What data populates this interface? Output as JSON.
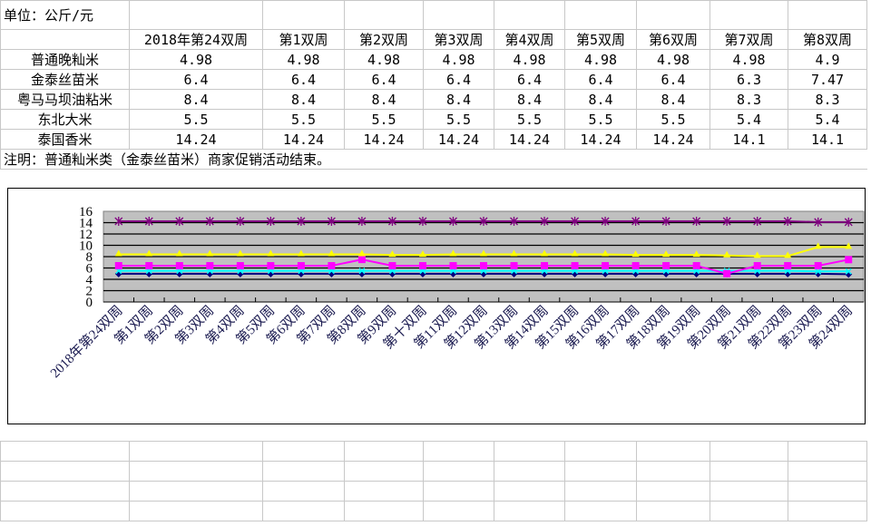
{
  "table": {
    "unit_label": "单位：公斤/元",
    "columns": [
      "2018年第24双周",
      "第1双周",
      "第2双周",
      "第3双周",
      "第4双周",
      "第5双周",
      "第6双周",
      "第7双周",
      "第8双周"
    ],
    "rows": [
      {
        "name": "普通晚籼米",
        "values": [
          "4.98",
          "4.98",
          "4.98",
          "4.98",
          "4.98",
          "4.98",
          "4.98",
          "4.98",
          "4.9"
        ]
      },
      {
        "name": "金泰丝苗米",
        "values": [
          "6.4",
          "6.4",
          "6.4",
          "6.4",
          "6.4",
          "6.4",
          "6.4",
          "6.3",
          "7.47"
        ]
      },
      {
        "name": "粤马马坝油粘米",
        "values": [
          "8.4",
          "8.4",
          "8.4",
          "8.4",
          "8.4",
          "8.4",
          "8.4",
          "8.3",
          "8.3"
        ]
      },
      {
        "name": "东北大米",
        "values": [
          "5.5",
          "5.5",
          "5.5",
          "5.5",
          "5.5",
          "5.5",
          "5.5",
          "5.4",
          "5.4"
        ]
      },
      {
        "name": "泰国香米",
        "values": [
          "14.24",
          "14.24",
          "14.24",
          "14.24",
          "14.24",
          "14.24",
          "14.24",
          "14.1",
          "14.1"
        ]
      }
    ],
    "note": "注明：普通籼米类（金泰丝苗米）商家促销活动结束。"
  },
  "chart_data": {
    "type": "line",
    "categories": [
      "2018年第24双周",
      "第1双周",
      "第2双周",
      "第3双周",
      "第4双周",
      "第5双周",
      "第6双周",
      "第7双周",
      "第8双周",
      "第9双周",
      "第十双周",
      "第11双周",
      "第12双周",
      "第13双周",
      "第14双周",
      "第15双周",
      "第16双周",
      "第17双周",
      "第18双周",
      "第19双周",
      "第20双周",
      "第21双周",
      "第22双周",
      "第23双周",
      "第24双周"
    ],
    "ylim": [
      0,
      16
    ],
    "yticks": [
      "0",
      "2",
      "4",
      "6",
      "8",
      "10",
      "12",
      "14",
      "16"
    ],
    "grid": true,
    "legend": "none",
    "series": [
      {
        "color": "#000080",
        "marker": "diamond",
        "values": [
          4.98,
          4.98,
          4.98,
          4.98,
          4.98,
          4.98,
          4.98,
          4.98,
          4.98,
          4.98,
          4.98,
          4.98,
          4.98,
          4.98,
          4.98,
          4.98,
          4.98,
          4.98,
          4.98,
          4.98,
          4.98,
          4.98,
          4.98,
          4.98,
          4.9
        ]
      },
      {
        "color": "#00ffff",
        "marker": "x",
        "values": [
          5.5,
          5.5,
          5.5,
          5.5,
          5.5,
          5.5,
          5.5,
          5.5,
          5.5,
          5.5,
          5.5,
          5.5,
          5.5,
          5.5,
          5.5,
          5.5,
          5.5,
          5.5,
          5.5,
          5.5,
          5.5,
          5.5,
          5.5,
          5.4,
          5.4
        ]
      },
      {
        "color": "#ff00ff",
        "marker": "square",
        "values": [
          6.4,
          6.4,
          6.4,
          6.4,
          6.4,
          6.4,
          6.4,
          6.4,
          7.5,
          6.4,
          6.4,
          6.4,
          6.4,
          6.4,
          6.4,
          6.4,
          6.4,
          6.4,
          6.4,
          6.4,
          5.0,
          6.4,
          6.4,
          6.4,
          7.47
        ]
      },
      {
        "color": "#ffff00",
        "marker": "triangle",
        "values": [
          8.4,
          8.4,
          8.4,
          8.4,
          8.4,
          8.4,
          8.4,
          8.4,
          8.4,
          8.3,
          8.3,
          8.4,
          8.4,
          8.4,
          8.4,
          8.4,
          8.4,
          8.3,
          8.3,
          8.3,
          8.2,
          8.1,
          8.1,
          9.7,
          9.7
        ]
      },
      {
        "color": "#800080",
        "marker": "star",
        "values": [
          14.24,
          14.24,
          14.24,
          14.24,
          14.24,
          14.24,
          14.24,
          14.24,
          14.24,
          14.24,
          14.24,
          14.24,
          14.24,
          14.24,
          14.24,
          14.24,
          14.24,
          14.24,
          14.24,
          14.24,
          14.24,
          14.24,
          14.24,
          14.1,
          14.1
        ]
      }
    ]
  }
}
